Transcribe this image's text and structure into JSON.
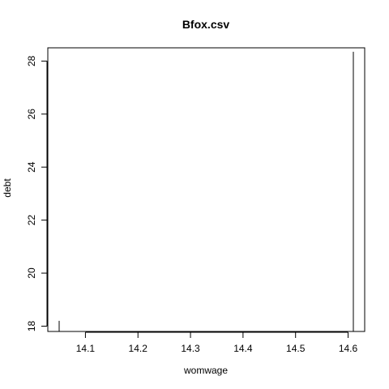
{
  "chart_data": {
    "type": "bar",
    "title": "Bfox.csv",
    "xlabel": "womwage",
    "ylabel": "debt",
    "xlim": [
      14.05,
      14.61
    ],
    "ylim": [
      17.8,
      28.5
    ],
    "x_ticks": [
      14.1,
      14.2,
      14.3,
      14.4,
      14.5,
      14.6
    ],
    "y_ticks": [
      18,
      20,
      22,
      24,
      26,
      28
    ],
    "x": [
      14.05,
      14.61
    ],
    "values": [
      18.2,
      28.35
    ],
    "style": "histogram-like vertical lines from baseline"
  }
}
